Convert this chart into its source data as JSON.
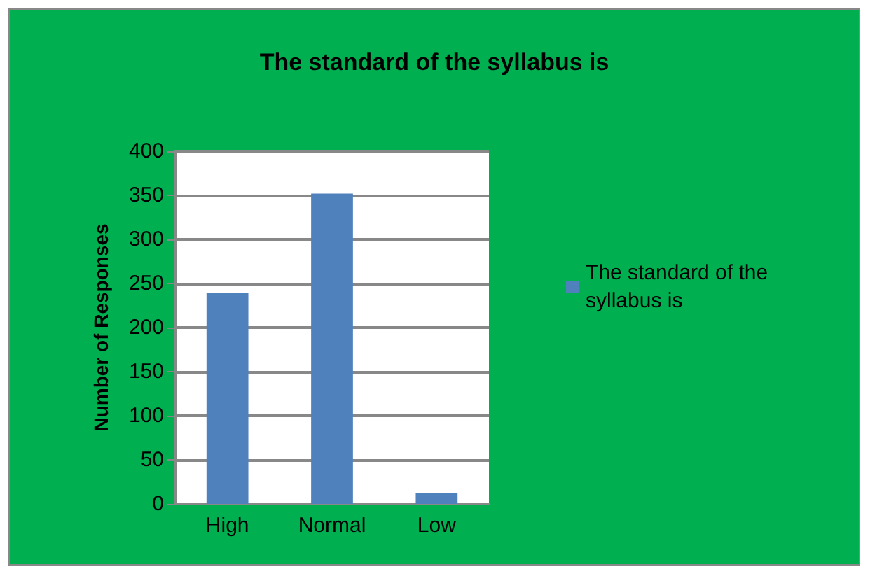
{
  "chart_data": {
    "type": "bar",
    "title": "The standard of the syllabus is",
    "ylabel": "Number of Responses",
    "categories": [
      "High",
      "Normal",
      "Low"
    ],
    "series": [
      {
        "name": "The standard of the syllabus is",
        "color": "#4f81bd",
        "values": [
          239,
          352,
          12
        ]
      }
    ],
    "ylim": [
      0,
      400
    ],
    "yticks": [
      0,
      50,
      100,
      150,
      200,
      250,
      300,
      350,
      400
    ],
    "grid": "y",
    "legend": "right"
  }
}
